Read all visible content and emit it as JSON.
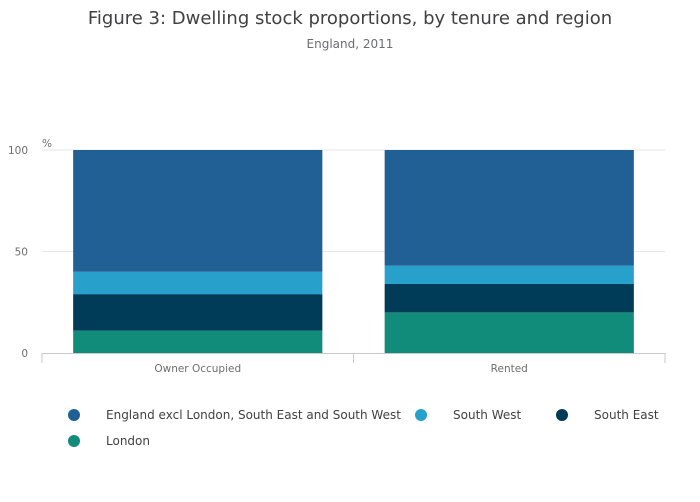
{
  "chart_data": {
    "type": "bar",
    "stacked": true,
    "title": "Figure 3: Dwelling stock proportions, by tenure and region",
    "subtitle": "England, 2011",
    "ylabel": "%",
    "ylim": [
      0,
      100
    ],
    "yticks": [
      0,
      50,
      100
    ],
    "categories": [
      "Owner Occupied",
      "Rented"
    ],
    "series": [
      {
        "name": "London",
        "color": "#118c7b",
        "values": [
          11,
          20
        ]
      },
      {
        "name": "South East",
        "color": "#003c57",
        "values": [
          18,
          14
        ]
      },
      {
        "name": "South West",
        "color": "#27a0cc",
        "values": [
          11,
          9
        ]
      },
      {
        "name": "England excl London, South East and South West",
        "color": "#206095",
        "values": [
          60,
          57
        ]
      }
    ],
    "legend_order": [
      "England excl London, South East and South West",
      "South West",
      "South East",
      "London"
    ]
  }
}
